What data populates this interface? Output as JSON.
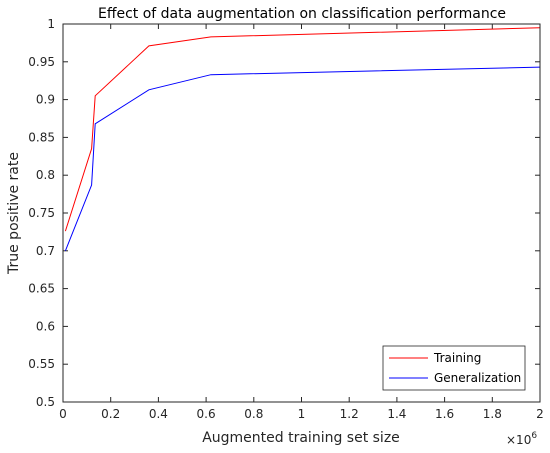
{
  "chart_data": {
    "type": "line",
    "title": "Effect of data augmentation on classification performance",
    "xlabel": "Augmented training set size",
    "ylabel": "True positive rate",
    "x_exponent_base": "×10",
    "x_exponent_power": "6",
    "xlim": [
      0,
      2
    ],
    "ylim": [
      0.5,
      1
    ],
    "xticks": [
      "0",
      "0.2",
      "0.4",
      "0.6",
      "0.8",
      "1",
      "1.2",
      "1.4",
      "1.6",
      "1.8",
      "2"
    ],
    "yticks": [
      "0.5",
      "0.55",
      "0.6",
      "0.65",
      "0.7",
      "0.75",
      "0.8",
      "0.85",
      "0.9",
      "0.95",
      "1"
    ],
    "grid": false,
    "legend_position": "bottom-right",
    "series": [
      {
        "name": "Training",
        "color": "#ff0000",
        "x": [
          0.01,
          0.12,
          0.135,
          0.36,
          0.62,
          2.0
        ],
        "y": [
          0.726,
          0.835,
          0.905,
          0.971,
          0.983,
          0.995
        ]
      },
      {
        "name": "Generalization",
        "color": "#0000ff",
        "x": [
          0.01,
          0.12,
          0.135,
          0.36,
          0.62,
          2.0
        ],
        "y": [
          0.7,
          0.787,
          0.868,
          0.913,
          0.933,
          0.943
        ]
      }
    ]
  }
}
